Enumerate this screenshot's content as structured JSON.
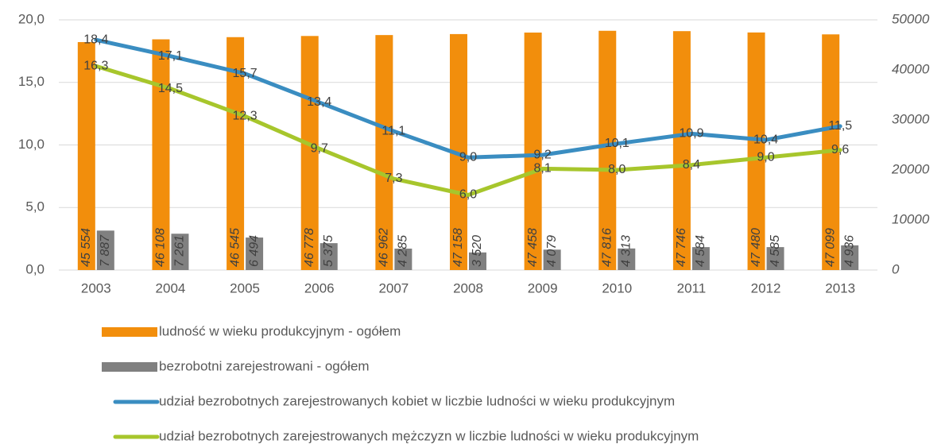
{
  "chart_data": {
    "type": "combo",
    "categories": [
      "2003",
      "2004",
      "2005",
      "2006",
      "2007",
      "2008",
      "2009",
      "2010",
      "2011",
      "2012",
      "2013"
    ],
    "ylim": [
      0,
      20
    ],
    "yticks": [
      {
        "value": 0,
        "label": "0,0"
      },
      {
        "value": 5,
        "label": "5,0"
      },
      {
        "value": 10,
        "label": "10,0"
      },
      {
        "value": 15,
        "label": "15,0"
      },
      {
        "value": 20,
        "label": "20,0"
      }
    ],
    "y2lim": [
      0,
      50000
    ],
    "y2ticks": [
      0,
      10000,
      20000,
      30000,
      40000,
      50000
    ],
    "grid": true,
    "legend": "bottom",
    "series": [
      {
        "name": "ludność w wieku produkcyjnym - ogółem",
        "type": "bar",
        "axis": "y2",
        "color": "#f28e0c",
        "values": [
          45554,
          46108,
          46545,
          46778,
          46962,
          47158,
          47458,
          47816,
          47746,
          47480,
          47099
        ],
        "value_labels": [
          "45 554",
          "46 108",
          "46 545",
          "46 778",
          "46 962",
          "47 158",
          "47 458",
          "47 816",
          "47 746",
          "47 480",
          "47 099"
        ]
      },
      {
        "name": "bezrobotni zarejestrowani - ogółem",
        "type": "bar",
        "axis": "y2",
        "color": "#808080",
        "values": [
          7887,
          7261,
          6494,
          5375,
          4285,
          3520,
          4079,
          4313,
          4584,
          4585,
          4936
        ],
        "value_labels": [
          "7 887",
          "7 261",
          "6 494",
          "5 375",
          "4 285",
          "3 520",
          "4 079",
          "4 313",
          "4 584",
          "4 585",
          "4 936"
        ]
      },
      {
        "name": "udział bezrobotnych zarejestrowanych kobiet w liczbie ludności w wieku produkcyjnym",
        "type": "line",
        "color": "#3a8dc1",
        "values": [
          18.4,
          17.1,
          15.7,
          13.4,
          11.1,
          9.0,
          9.2,
          10.1,
          10.9,
          10.4,
          11.5
        ],
        "value_labels": [
          "18,4",
          "17,1",
          "15,7",
          "13,4",
          "11,1",
          "9,0",
          "9,2",
          "10,1",
          "10,9",
          "10,4",
          "11,5"
        ]
      },
      {
        "name": "udział bezrobotnych zarejestrowanych mężczyzn w liczbie ludności w wieku produkcyjnym",
        "type": "line",
        "color": "#a7c62c",
        "values": [
          16.3,
          14.5,
          12.3,
          9.7,
          7.3,
          6.0,
          8.1,
          8.0,
          8.4,
          9.0,
          9.6
        ],
        "value_labels": [
          "16,3",
          "14,5",
          "12,3",
          "9,7",
          "7,3",
          "6,0",
          "8,1",
          "8,0",
          "8,4",
          "9,0",
          "9,6"
        ]
      }
    ]
  }
}
